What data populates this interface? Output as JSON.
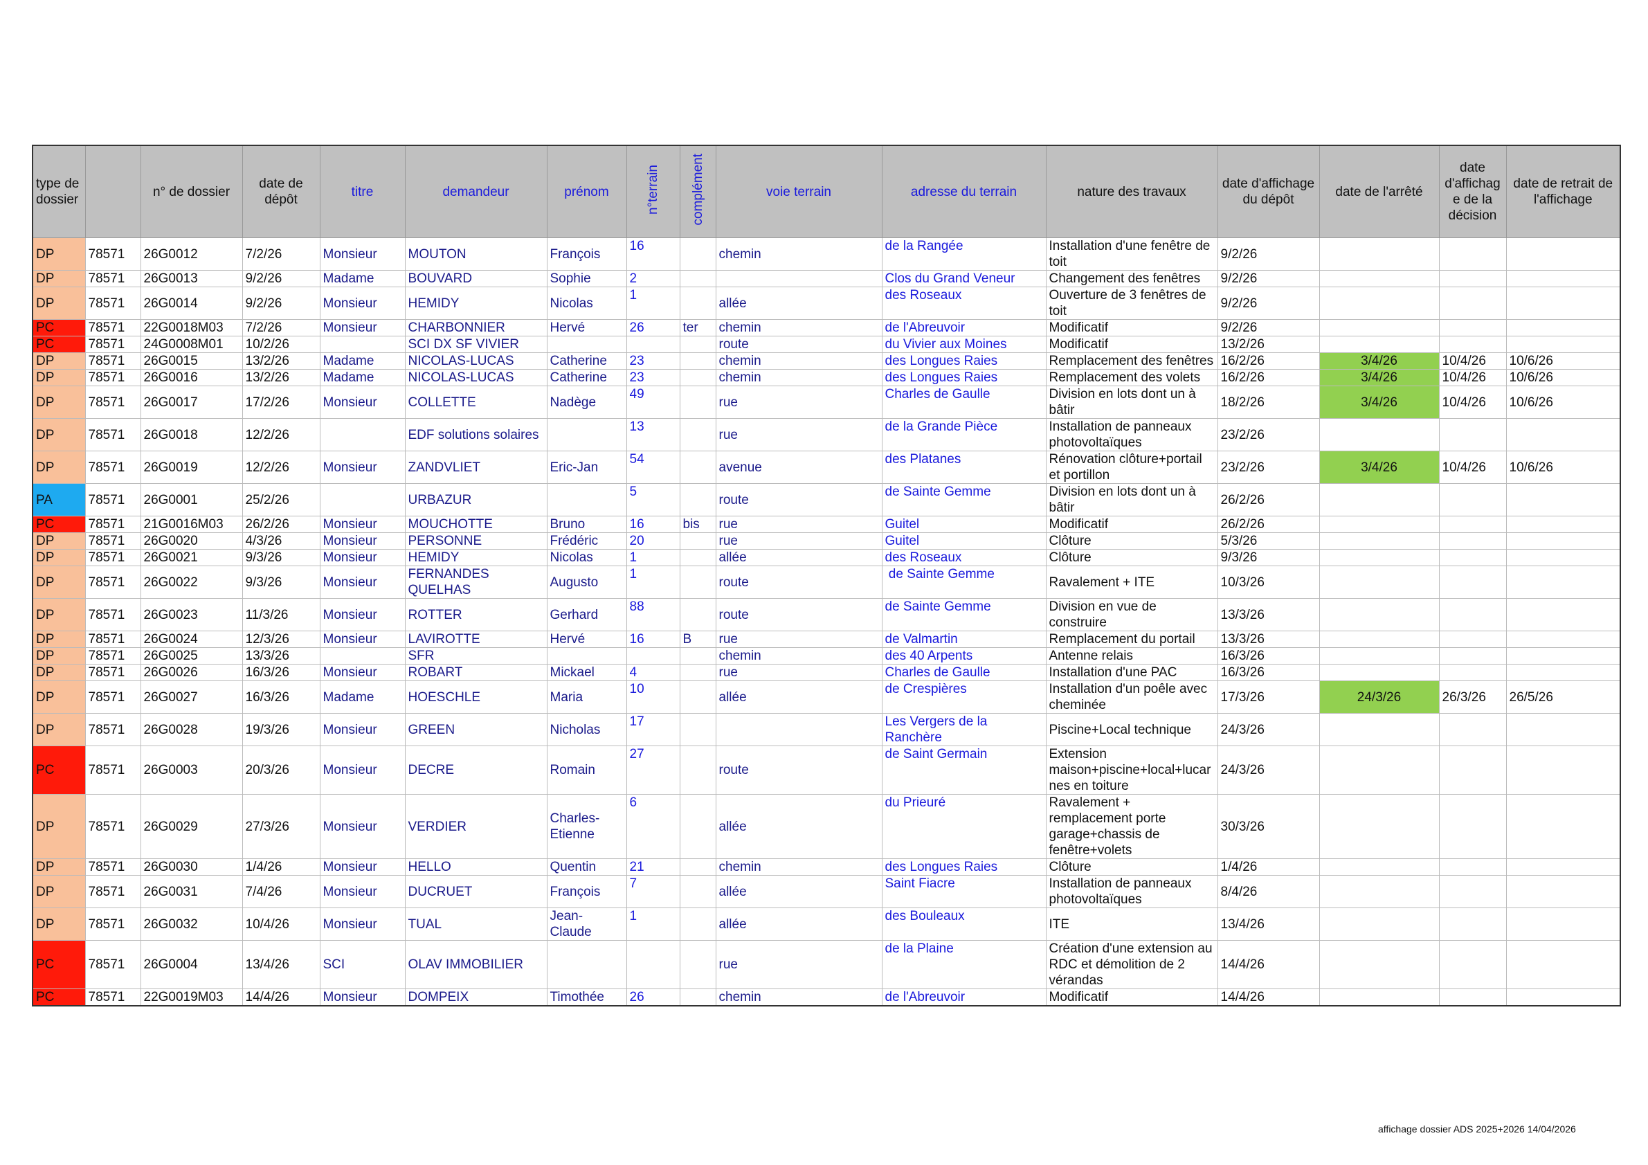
{
  "table": {
    "type_colors": {
      "DP": "#f9c09a",
      "PC": "#ff1a0a",
      "PA": "#1eaaf0"
    },
    "decision_color": "#92d050",
    "headers": [
      "type de dossier",
      null,
      "n° de dossier",
      "date de dépôt",
      "titre",
      "demandeur",
      "prénom",
      "n°terrain",
      "complément",
      "voie terrain",
      "adresse du terrain",
      "nature des travaux",
      "date d'affichage du dépôt",
      "date de l'arrêté",
      "date d'affichage de la décision",
      "date de retrait de l'affichage"
    ],
    "rows": [
      [
        "DP",
        "78571",
        "26G0012",
        "7/2/26",
        "Monsieur",
        "MOUTON",
        "François",
        "16",
        null,
        "chemin",
        "de la Rangée",
        "Installation d'une fenêtre de toit",
        "9/2/26",
        null,
        null,
        null
      ],
      [
        "DP",
        "78571",
        "26G0013",
        "9/2/26",
        "Madame",
        "BOUVARD",
        "Sophie",
        "2",
        null,
        null,
        "Clos du Grand Veneur",
        "Changement des fenêtres",
        "9/2/26",
        null,
        null,
        null
      ],
      [
        "DP",
        "78571",
        "26G0014",
        "9/2/26",
        "Monsieur",
        "HEMIDY",
        "Nicolas",
        "1",
        null,
        "allée",
        "des Roseaux",
        "Ouverture de 3 fenêtres de toit",
        "9/2/26",
        null,
        null,
        null
      ],
      [
        "PC",
        "78571",
        "22G0018M03",
        "7/2/26",
        "Monsieur",
        "CHARBONNIER",
        "Hervé",
        "26",
        "ter",
        "chemin",
        "de l'Abreuvoir",
        "Modificatif",
        "9/2/26",
        null,
        null,
        null
      ],
      [
        "PC",
        "78571",
        "24G0008M01",
        "10/2/26",
        null,
        "SCI DX SF VIVIER",
        null,
        null,
        null,
        "route",
        "du Vivier aux Moines",
        "Modificatif",
        "13/2/26",
        null,
        null,
        null
      ],
      [
        "DP",
        "78571",
        "26G0015",
        "13/2/26",
        "Madame",
        "NICOLAS-LUCAS",
        "Catherine",
        "23",
        null,
        "chemin",
        "des Longues Raies",
        "Remplacement des fenêtres",
        "16/2/26",
        "3/4/26",
        "10/4/26",
        "10/6/26"
      ],
      [
        "DP",
        "78571",
        "26G0016",
        "13/2/26",
        "Madame",
        "NICOLAS-LUCAS",
        "Catherine",
        "23",
        null,
        "chemin",
        "des Longues Raies",
        "Remplacement des volets",
        "16/2/26",
        "3/4/26",
        "10/4/26",
        "10/6/26"
      ],
      [
        "DP",
        "78571",
        "26G0017",
        "17/2/26",
        "Monsieur",
        "COLLETTE",
        "Nadège",
        "49",
        null,
        "rue",
        "Charles de Gaulle",
        "Division en lots dont un à bâtir",
        "18/2/26",
        "3/4/26",
        "10/4/26",
        "10/6/26"
      ],
      [
        "DP",
        "78571",
        "26G0018",
        "12/2/26",
        null,
        "EDF solutions solaires",
        null,
        "13",
        null,
        "rue",
        "de la Grande Pièce",
        "Installation de panneaux photovoltaïques",
        "23/2/26",
        null,
        null,
        null
      ],
      [
        "DP",
        "78571",
        "26G0019",
        "12/2/26",
        "Monsieur",
        "ZANDVLIET",
        "Eric-Jan",
        "54",
        null,
        "avenue",
        "des Platanes",
        "Rénovation clôture+portail et portillon",
        "23/2/26",
        "3/4/26",
        "10/4/26",
        "10/6/26"
      ],
      [
        "PA",
        "78571",
        "26G0001",
        "25/2/26",
        null,
        "URBAZUR",
        null,
        "5",
        null,
        "route",
        "de Sainte Gemme",
        "Division en lots dont un à bâtir",
        "26/2/26",
        null,
        null,
        null
      ],
      [
        "PC",
        "78571",
        "21G0016M03",
        "26/2/26",
        "Monsieur",
        "MOUCHOTTE",
        "Bruno",
        "16",
        "bis",
        "rue",
        "Guitel",
        "Modificatif",
        "26/2/26",
        null,
        null,
        null
      ],
      [
        "DP",
        "78571",
        "26G0020",
        "4/3/26",
        "Monsieur",
        "PERSONNE",
        "Frédéric",
        "20",
        null,
        "rue",
        "Guitel",
        "Clôture",
        "5/3/26",
        null,
        null,
        null
      ],
      [
        "DP",
        "78571",
        "26G0021",
        "9/3/26",
        "Monsieur",
        "HEMIDY",
        "Nicolas",
        "1",
        null,
        "allée",
        "des Roseaux",
        "Clôture",
        "9/3/26",
        null,
        null,
        null
      ],
      [
        "DP",
        "78571",
        "26G0022",
        "9/3/26",
        "Monsieur",
        "FERNANDES QUELHAS",
        "Augusto",
        "1",
        null,
        "route",
        " de Sainte Gemme",
        "Ravalement + ITE",
        "10/3/26",
        null,
        null,
        null
      ],
      [
        "DP",
        "78571",
        "26G0023",
        "11/3/26",
        "Monsieur",
        "ROTTER",
        "Gerhard",
        "88",
        null,
        "route",
        "de Sainte Gemme",
        "Division en vue de construire",
        "13/3/26",
        null,
        null,
        null
      ],
      [
        "DP",
        "78571",
        "26G0024",
        "12/3/26",
        "Monsieur",
        "LAVIROTTE",
        "Hervé",
        "16",
        "B",
        "rue",
        "de Valmartin",
        "Remplacement du portail",
        "13/3/26",
        null,
        null,
        null
      ],
      [
        "DP",
        "78571",
        "26G0025",
        "13/3/26",
        null,
        "SFR",
        null,
        null,
        null,
        "chemin",
        "des 40 Arpents",
        "Antenne relais",
        "16/3/26",
        null,
        null,
        null
      ],
      [
        "DP",
        "78571",
        "26G0026",
        "16/3/26",
        "Monsieur",
        "ROBART",
        "Mickael",
        "4",
        null,
        "rue",
        "Charles de Gaulle",
        "Installation d'une PAC",
        "16/3/26",
        null,
        null,
        null
      ],
      [
        "DP",
        "78571",
        "26G0027",
        "16/3/26",
        "Madame",
        "HOESCHLE",
        "Maria",
        "10",
        null,
        "allée",
        "de Crespières",
        "Installation d'un poêle avec cheminée",
        "17/3/26",
        "24/3/26",
        "26/3/26",
        "26/5/26"
      ],
      [
        "DP",
        "78571",
        "26G0028",
        "19/3/26",
        "Monsieur",
        "GREEN",
        "Nicholas",
        "17",
        null,
        null,
        "Les Vergers de la Ranchère",
        "Piscine+Local technique",
        "24/3/26",
        null,
        null,
        null
      ],
      [
        "PC",
        "78571",
        "26G0003",
        "20/3/26",
        "Monsieur",
        "DECRE",
        "Romain",
        "27",
        null,
        "route",
        "de Saint Germain",
        "Extension maison+piscine+local+lucarnes en toiture",
        "24/3/26",
        null,
        null,
        null
      ],
      [
        "DP",
        "78571",
        "26G0029",
        "27/3/26",
        "Monsieur",
        "VERDIER",
        "Charles-Etienne",
        "6",
        null,
        "allée",
        "du Prieuré",
        "Ravalement + remplacement porte garage+chassis de fenêtre+volets",
        "30/3/26",
        null,
        null,
        null
      ],
      [
        "DP",
        "78571",
        "26G0030",
        "1/4/26",
        "Monsieur",
        "HELLO",
        "Quentin",
        "21",
        null,
        "chemin",
        "des Longues Raies",
        "Clôture",
        "1/4/26",
        null,
        null,
        null
      ],
      [
        "DP",
        "78571",
        "26G0031",
        "7/4/26",
        "Monsieur",
        "DUCRUET",
        "François",
        "7",
        null,
        "allée",
        "Saint Fiacre",
        "Installation de panneaux photovoltaïques",
        "8/4/26",
        null,
        null,
        null
      ],
      [
        "DP",
        "78571",
        "26G0032",
        "10/4/26",
        "Monsieur",
        "TUAL",
        "Jean-Claude",
        "1",
        null,
        "allée",
        "des Bouleaux",
        "ITE",
        "13/4/26",
        null,
        null,
        null
      ],
      [
        "PC",
        "78571",
        "26G0004",
        "13/4/26",
        "SCI",
        "OLAV IMMOBILIER",
        null,
        null,
        null,
        "rue",
        "de la Plaine",
        "Création d'une extension au RDC et démolition de 2 vérandas",
        "14/4/26",
        null,
        null,
        null
      ],
      [
        "PC",
        "78571",
        "22G0019M03",
        "14/4/26",
        "Monsieur",
        "DOMPEIX",
        "Timothée",
        "26",
        null,
        "chemin",
        "de l'Abreuvoir",
        "Modificatif",
        "14/4/26",
        null,
        null,
        null
      ]
    ]
  },
  "footer": "affichage dossier ADS 2025+2026 14/04/2026"
}
